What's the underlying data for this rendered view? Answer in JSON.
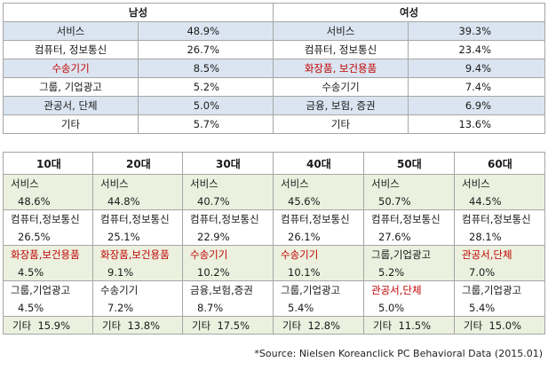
{
  "gender": {
    "headers": [
      "남성",
      "여성"
    ],
    "rows": [
      {
        "m_label": "서비스",
        "m_value": "48.9%",
        "f_label": "서비스",
        "f_value": "39.3%",
        "m_red": false,
        "f_red": false
      },
      {
        "m_label": "컴퓨터, 정보통신",
        "m_value": "26.7%",
        "f_label": "컴퓨터, 정보통신",
        "f_value": "23.4%",
        "m_red": false,
        "f_red": false
      },
      {
        "m_label": "수송기기",
        "m_value": "8.5%",
        "f_label": "화장품, 보건용품",
        "f_value": "9.4%",
        "m_red": true,
        "f_red": true
      },
      {
        "m_label": "그룹, 기업광고",
        "m_value": "5.2%",
        "f_label": "수송기기",
        "f_value": "7.4%",
        "m_red": false,
        "f_red": false
      },
      {
        "m_label": "관공서, 단체",
        "m_value": "5.0%",
        "f_label": "금융, 보험, 증권",
        "f_value": "6.9%",
        "m_red": false,
        "f_red": false
      },
      {
        "m_label": "기타",
        "m_value": "5.7%",
        "f_label": "기타",
        "f_value": "13.6%",
        "m_red": false,
        "f_red": false
      }
    ]
  },
  "age": {
    "headers": [
      "10대",
      "20대",
      "30대",
      "40대",
      "50대",
      "60대"
    ],
    "blocks": [
      {
        "labels": [
          "서비스",
          "서비스",
          "서비스",
          "서비스",
          "서비스",
          "서비스"
        ],
        "values": [
          "48.6%",
          "44.8%",
          "40.7%",
          "45.6%",
          "50.7%",
          "44.5%"
        ],
        "red": [
          false,
          false,
          false,
          false,
          false,
          false
        ]
      },
      {
        "labels": [
          "컴퓨터,정보통신",
          "컴퓨터,정보통신",
          "컴퓨터,정보통신",
          "컴퓨터,정보통신",
          "컴퓨터,정보통신",
          "컴퓨터,정보통신"
        ],
        "values": [
          "26.5%",
          "25.1%",
          "22.9%",
          "26.1%",
          "27.6%",
          "28.1%"
        ],
        "red": [
          false,
          false,
          false,
          false,
          false,
          false
        ]
      },
      {
        "labels": [
          "화장품,보건용품",
          "화장품,보건용품",
          "수송기기",
          "수송기기",
          "그룹,기업광고",
          "관공서,단체"
        ],
        "values": [
          "4.5%",
          "9.1%",
          "10.2%",
          "10.1%",
          "5.2%",
          "7.0%"
        ],
        "red": [
          true,
          true,
          true,
          true,
          false,
          true
        ]
      },
      {
        "labels": [
          "그룹,기업광고",
          "수송기기",
          "금융,보험,증권",
          "그룹,기업광고",
          "관공서,단체",
          "그룹,기업광고"
        ],
        "values": [
          "4.5%",
          "7.2%",
          "8.7%",
          "5.4%",
          "5.0%",
          "5.4%"
        ],
        "red": [
          false,
          false,
          false,
          false,
          true,
          false
        ]
      }
    ],
    "etc": [
      "기타  15.9%",
      "기타  13.8%",
      "기타  17.5%",
      "기타  12.8%",
      "기타  11.5%",
      "기타  15.0%"
    ]
  },
  "source": "*Source: Nielsen Koreanclick PC Behavioral Data (2015.01)"
}
